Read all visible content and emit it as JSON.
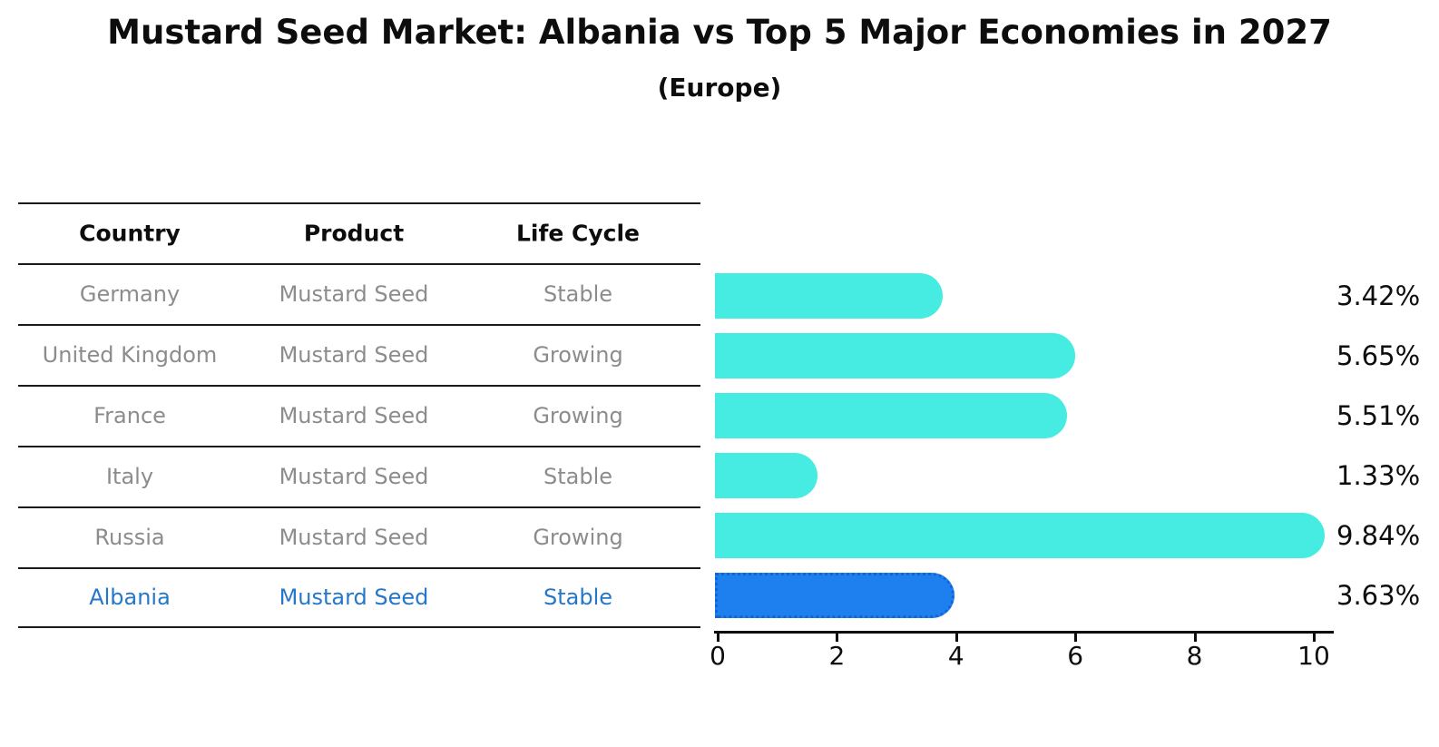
{
  "title": "Mustard Seed Market: Albania vs Top 5 Major Economies in 2027",
  "subtitle": "(Europe)",
  "table": {
    "headers": [
      "Country",
      "Product",
      "Life Cycle"
    ],
    "rows": [
      {
        "country": "Germany",
        "product": "Mustard Seed",
        "life_cycle": "Stable",
        "highlight": false
      },
      {
        "country": "United Kingdom",
        "product": "Mustard Seed",
        "life_cycle": "Growing",
        "highlight": false
      },
      {
        "country": "France",
        "product": "Mustard Seed",
        "life_cycle": "Growing",
        "highlight": false
      },
      {
        "country": "Italy",
        "product": "Mustard Seed",
        "life_cycle": "Stable",
        "highlight": false
      },
      {
        "country": "Russia",
        "product": "Mustard Seed",
        "life_cycle": "Growing",
        "highlight": false
      },
      {
        "country": "Albania",
        "product": "Mustard Seed",
        "life_cycle": "Stable",
        "highlight": true
      }
    ]
  },
  "chart_data": {
    "type": "bar",
    "orientation": "horizontal",
    "title": "Mustard Seed Market: Albania vs Top 5 Major Economies in 2027",
    "subtitle": "(Europe)",
    "categories": [
      "Germany",
      "United Kingdom",
      "France",
      "Italy",
      "Russia",
      "Albania"
    ],
    "values": [
      3.42,
      5.65,
      5.51,
      1.33,
      9.84,
      3.63
    ],
    "value_labels": [
      "3.42%",
      "5.65%",
      "5.51%",
      "1.33%",
      "9.84%",
      "3.63%"
    ],
    "x_ticks": [
      "0",
      "2",
      "4",
      "6",
      "8",
      "10"
    ],
    "xlim": [
      0,
      10.3
    ],
    "grid": false,
    "legend": false,
    "highlight_index": 5,
    "bar_color": "#46EBE1",
    "highlight_bar_color": "#1E80EE",
    "highlight_border_color": "#1364D6",
    "highlight_text_color": "#2577C8",
    "text_color": "#0D0D0D",
    "muted_text_color": "#8C8C8C"
  }
}
